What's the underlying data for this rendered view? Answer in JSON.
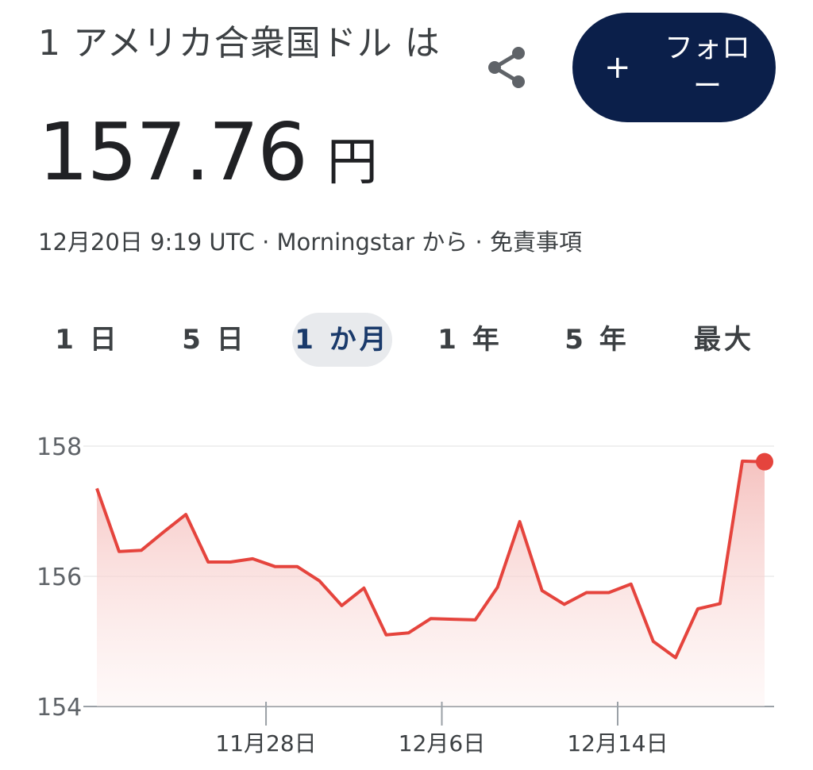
{
  "header": {
    "title": "1 アメリカ合衆国ドル は",
    "price": "157.76",
    "currency": "円"
  },
  "actions": {
    "share_icon": "share-icon",
    "follow_plus": "+",
    "follow_label": "フォロー"
  },
  "meta": {
    "timestamp": "12月20日 9:19 UTC",
    "sep1": " · ",
    "source": "Morningstar から",
    "sep2": " · ",
    "disclaimer": "免責事項"
  },
  "tabs": [
    {
      "label": "1 日",
      "active": false
    },
    {
      "label": "5 日",
      "active": false
    },
    {
      "label": "1 か月",
      "active": true
    },
    {
      "label": "1 年",
      "active": false
    },
    {
      "label": "5 年",
      "active": false
    },
    {
      "label": "最大",
      "active": false
    }
  ],
  "colors": {
    "line": "#e5443d",
    "fill_top": "#f4b8b5",
    "accent_button": "#0b1f4a"
  },
  "chart_data": {
    "type": "area",
    "ylim": [
      154,
      158
    ],
    "yticks": [
      "158",
      "156",
      "154"
    ],
    "xticks": [
      "11月28日",
      "12月6日",
      "12月14日"
    ],
    "values": [
      157.35,
      156.38,
      156.4,
      156.68,
      156.95,
      156.22,
      156.22,
      156.27,
      156.15,
      156.15,
      155.93,
      155.55,
      155.82,
      155.1,
      155.13,
      155.35,
      155.34,
      155.33,
      155.83,
      156.84,
      155.78,
      155.57,
      155.75,
      155.75,
      155.88,
      155.0,
      154.75,
      155.5,
      155.58,
      157.77,
      157.76
    ],
    "last_value": "157.76"
  }
}
